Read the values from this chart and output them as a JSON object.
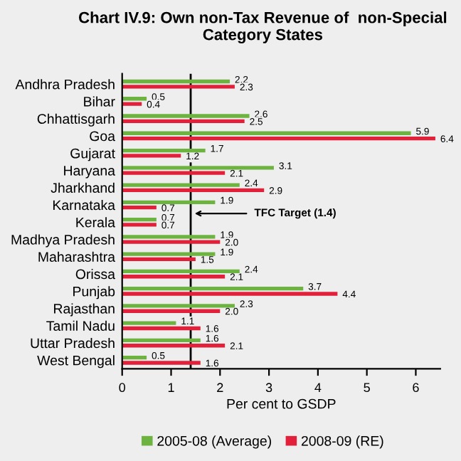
{
  "chart_data": {
    "type": "bar",
    "orientation": "horizontal",
    "title": "Chart IV.9: Own non-Tax Revenue of  non-Special Category States",
    "categories": [
      "Andhra Pradesh",
      "Bihar",
      "Chhattisgarh",
      "Goa",
      "Gujarat",
      "Haryana",
      "Jharkhand",
      "Karnataka",
      "Kerala",
      "Madhya Pradesh",
      "Maharashtra",
      "Orissa",
      "Punjab",
      "Rajasthan",
      "Tamil Nadu",
      "Uttar Pradesh",
      "West Bengal"
    ],
    "series": [
      {
        "name": "2005-08 (Average)",
        "color": "#6cb33f",
        "values": [
          2.2,
          0.5,
          2.6,
          5.9,
          1.7,
          3.1,
          2.4,
          1.9,
          0.7,
          1.9,
          1.9,
          2.4,
          3.7,
          2.3,
          1.1,
          1.6,
          0.5
        ],
        "value_labels": [
          "2.2",
          "0.5",
          "2.6",
          "5.9",
          "1.7",
          "3.1",
          "2.4",
          "1.9",
          "0.7",
          "1.9",
          "1.9",
          "2.4",
          "3.7",
          "2.3",
          "1.1",
          "1.6",
          "0.5"
        ]
      },
      {
        "name": "2008-09 (RE)",
        "color": "#e2203a",
        "values": [
          2.3,
          0.4,
          2.5,
          6.4,
          1.2,
          2.1,
          2.9,
          0.7,
          0.7,
          2.0,
          1.5,
          2.1,
          4.4,
          2.0,
          1.6,
          2.1,
          1.6
        ],
        "value_labels": [
          "2.3",
          "0.4",
          "2.5",
          "6.4",
          "1.2",
          "2.1",
          "2.9",
          "0.7",
          "0.7",
          "2.0",
          "1.5",
          "2.1",
          "4.4",
          "2.0",
          "1.6",
          "2.1",
          "1.6"
        ]
      }
    ],
    "xlabel": "Per cent to GSDP",
    "xlim": [
      0,
      6.5
    ],
    "xticks": [
      0,
      1,
      2,
      3,
      4,
      5,
      6
    ],
    "ref_lines": [
      {
        "axis": "x",
        "value": 1.4,
        "label": "TFC Target (1.4)",
        "color": "#000000"
      }
    ],
    "data_labels": true,
    "legend": "bottom",
    "grid": false
  }
}
